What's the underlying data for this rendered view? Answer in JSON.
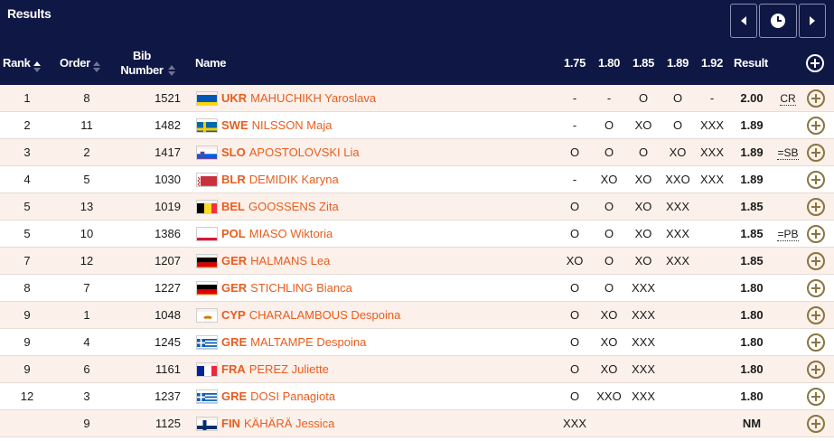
{
  "header": {
    "title": "Results",
    "columns": {
      "rank": "Rank",
      "order": "Order",
      "bib": "Bib Number",
      "name": "Name",
      "heights": [
        "1.75",
        "1.80",
        "1.85",
        "1.89",
        "1.92"
      ],
      "result": "Result"
    }
  },
  "rows": [
    {
      "rank": "1",
      "order": "8",
      "bib": "1521",
      "noc": "UKR",
      "athlete": "MAHUCHIKH Yaroslava",
      "flag": "ukr",
      "attempts": [
        "-",
        "-",
        "O",
        "O",
        "-"
      ],
      "result": "2.00",
      "record": "CR"
    },
    {
      "rank": "2",
      "order": "11",
      "bib": "1482",
      "noc": "SWE",
      "athlete": "NILSSON Maja",
      "flag": "swe",
      "attempts": [
        "-",
        "O",
        "XO",
        "O",
        "XXX"
      ],
      "result": "1.89",
      "record": ""
    },
    {
      "rank": "3",
      "order": "2",
      "bib": "1417",
      "noc": "SLO",
      "athlete": "APOSTOLOVSKI Lia",
      "flag": "slo",
      "attempts": [
        "O",
        "O",
        "O",
        "XO",
        "XXX"
      ],
      "result": "1.89",
      "record": "=SB"
    },
    {
      "rank": "4",
      "order": "5",
      "bib": "1030",
      "noc": "BLR",
      "athlete": "DEMIDIK Karyna",
      "flag": "blr",
      "attempts": [
        "-",
        "XO",
        "XO",
        "XXO",
        "XXX"
      ],
      "result": "1.89",
      "record": ""
    },
    {
      "rank": "5",
      "order": "13",
      "bib": "1019",
      "noc": "BEL",
      "athlete": "GOOSSENS Zita",
      "flag": "bel",
      "attempts": [
        "O",
        "O",
        "XO",
        "XXX",
        ""
      ],
      "result": "1.85",
      "record": ""
    },
    {
      "rank": "5",
      "order": "10",
      "bib": "1386",
      "noc": "POL",
      "athlete": "MIASO Wiktoria",
      "flag": "pol",
      "attempts": [
        "O",
        "O",
        "XO",
        "XXX",
        ""
      ],
      "result": "1.85",
      "record": "=PB"
    },
    {
      "rank": "7",
      "order": "12",
      "bib": "1207",
      "noc": "GER",
      "athlete": "HALMANS Lea",
      "flag": "ger",
      "attempts": [
        "XO",
        "O",
        "XO",
        "XXX",
        ""
      ],
      "result": "1.85",
      "record": ""
    },
    {
      "rank": "8",
      "order": "7",
      "bib": "1227",
      "noc": "GER",
      "athlete": "STICHLING Bianca",
      "flag": "ger",
      "attempts": [
        "O",
        "O",
        "XXX",
        "",
        ""
      ],
      "result": "1.80",
      "record": ""
    },
    {
      "rank": "9",
      "order": "1",
      "bib": "1048",
      "noc": "CYP",
      "athlete": "CHARALAMBOUS Despoina",
      "flag": "cyp",
      "attempts": [
        "O",
        "XO",
        "XXX",
        "",
        ""
      ],
      "result": "1.80",
      "record": ""
    },
    {
      "rank": "9",
      "order": "4",
      "bib": "1245",
      "noc": "GRE",
      "athlete": "MALTAMPE Despoina",
      "flag": "gre",
      "attempts": [
        "O",
        "XO",
        "XXX",
        "",
        ""
      ],
      "result": "1.80",
      "record": ""
    },
    {
      "rank": "9",
      "order": "6",
      "bib": "1161",
      "noc": "FRA",
      "athlete": "PEREZ Juliette",
      "flag": "fra",
      "attempts": [
        "O",
        "XO",
        "XXX",
        "",
        ""
      ],
      "result": "1.80",
      "record": ""
    },
    {
      "rank": "12",
      "order": "3",
      "bib": "1237",
      "noc": "GRE",
      "athlete": "DOSI Panagiota",
      "flag": "gre",
      "attempts": [
        "O",
        "XXO",
        "XXX",
        "",
        ""
      ],
      "result": "1.80",
      "record": ""
    },
    {
      "rank": "",
      "order": "9",
      "bib": "1125",
      "noc": "FIN",
      "athlete": "KÄHÄRÄ Jessica",
      "flag": "fin",
      "attempts": [
        "XXX",
        "",
        "",
        "",
        ""
      ],
      "result": "NM",
      "record": ""
    }
  ],
  "colors": {
    "header_bg": "#0f1744",
    "accent_orange": "#e85d1e",
    "row_tint": "#fcf0ea",
    "add_icon": "#8a7540"
  }
}
